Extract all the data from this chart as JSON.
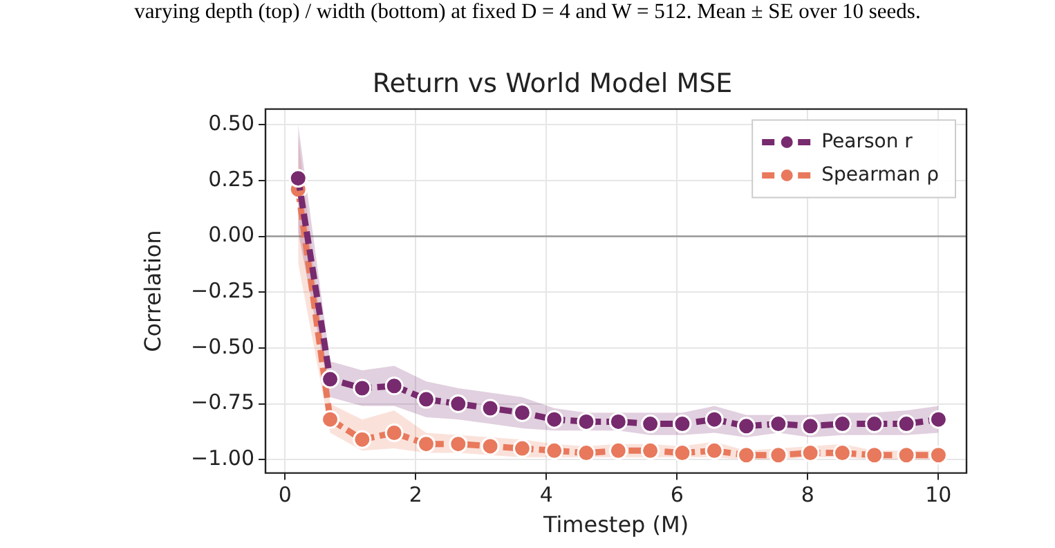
{
  "chart_data": {
    "type": "line",
    "title": "Return vs World Model MSE",
    "xlabel": "Timestep (M)",
    "ylabel": "Correlation",
    "annotations": [
      "varying depth (top) / width (bottom) at fixed D = 4 and W = 512. Mean ± SE over 10 seeds."
    ],
    "x": [
      0.2,
      0.69,
      1.18,
      1.67,
      2.16,
      2.65,
      3.14,
      3.63,
      4.12,
      4.61,
      5.1,
      5.59,
      6.08,
      6.57,
      7.06,
      7.55,
      8.04,
      8.53,
      9.02,
      9.51,
      10.0
    ],
    "series": [
      {
        "name": "Pearson r",
        "color": "#772a6e",
        "values": [
          0.26,
          -0.64,
          -0.68,
          -0.67,
          -0.73,
          -0.75,
          -0.77,
          -0.79,
          -0.82,
          -0.83,
          -0.83,
          -0.84,
          -0.84,
          -0.82,
          -0.85,
          -0.84,
          -0.85,
          -0.84,
          -0.84,
          -0.84,
          -0.82
        ],
        "upper": [
          0.5,
          -0.56,
          -0.6,
          -0.58,
          -0.65,
          -0.68,
          -0.7,
          -0.72,
          -0.77,
          -0.79,
          -0.79,
          -0.79,
          -0.79,
          -0.76,
          -0.8,
          -0.8,
          -0.8,
          -0.79,
          -0.79,
          -0.78,
          -0.76
        ],
        "lower": [
          0.02,
          -0.72,
          -0.76,
          -0.76,
          -0.81,
          -0.82,
          -0.84,
          -0.86,
          -0.87,
          -0.87,
          -0.87,
          -0.89,
          -0.89,
          -0.88,
          -0.9,
          -0.88,
          -0.9,
          -0.89,
          -0.89,
          -0.89,
          -0.88
        ]
      },
      {
        "name": "Spearman ρ",
        "color": "#e8795c",
        "values": [
          0.21,
          -0.82,
          -0.91,
          -0.88,
          -0.93,
          -0.93,
          -0.94,
          -0.95,
          -0.96,
          -0.97,
          -0.96,
          -0.96,
          -0.97,
          -0.96,
          -0.98,
          -0.98,
          -0.97,
          -0.97,
          -0.98,
          -0.98,
          -0.98
        ],
        "upper": [
          0.45,
          -0.75,
          -0.82,
          -0.78,
          -0.88,
          -0.89,
          -0.9,
          -0.91,
          -0.93,
          -0.94,
          -0.93,
          -0.93,
          -0.94,
          -0.92,
          -0.96,
          -0.95,
          -0.94,
          -0.93,
          -0.96,
          -0.96,
          -0.96
        ],
        "lower": [
          -0.12,
          -0.88,
          -0.96,
          -0.95,
          -0.97,
          -0.97,
          -0.98,
          -0.99,
          -0.99,
          -0.99,
          -0.99,
          -0.99,
          -0.99,
          -0.99,
          -1.0,
          -1.0,
          -0.99,
          -0.99,
          -1.0,
          -1.0,
          -1.0
        ]
      }
    ],
    "xlim": [
      -0.3,
      10.43
    ],
    "xticks": [
      0,
      2,
      4,
      6,
      8,
      10
    ],
    "ylim": [
      -1.06,
      0.57
    ],
    "yticks": [
      {
        "value": -1,
        "label": "−1.00"
      },
      {
        "value": -0.75,
        "label": "−0.75"
      },
      {
        "value": -0.5,
        "label": "−0.50"
      },
      {
        "value": -0.25,
        "label": "−0.25"
      },
      {
        "value": 0,
        "label": "0.00"
      },
      {
        "value": 0.25,
        "label": "0.25"
      },
      {
        "value": 0.5,
        "label": "0.50"
      }
    ],
    "ref_lines": [
      {
        "axis": "y",
        "value": 0,
        "color": "#999999"
      }
    ],
    "grid": true,
    "legend": "top right",
    "marker": "circle",
    "line_style": "dashed"
  }
}
